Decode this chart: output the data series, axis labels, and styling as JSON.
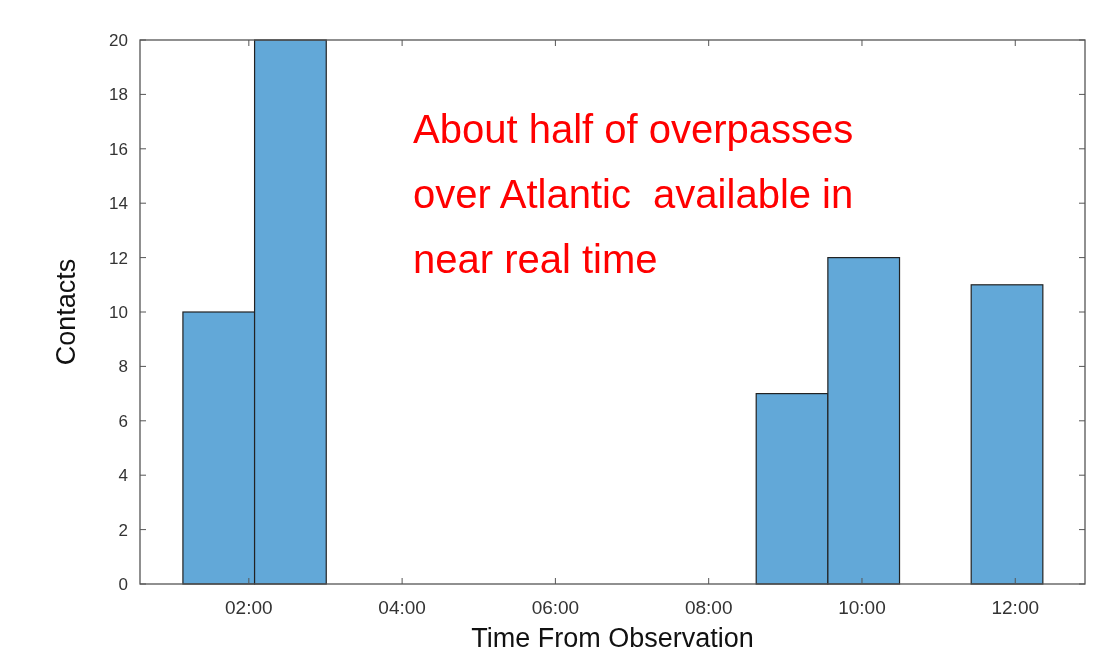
{
  "chart_data": {
    "type": "histogram",
    "xlabel": "Time From Observation",
    "ylabel": "Contacts",
    "bins": [
      1.14,
      2.075,
      3.01,
      3.945,
      4.88,
      5.815,
      6.75,
      7.685,
      8.62,
      9.555,
      10.49,
      11.425,
      12.36
    ],
    "values": [
      10,
      20,
      0,
      0,
      0,
      0,
      0,
      0,
      7,
      12,
      0,
      11
    ],
    "color": "#62a8d8",
    "xlim": [
      0.58,
      12.91
    ],
    "xticks": [
      {
        "value": 2,
        "label": "02:00"
      },
      {
        "value": 4,
        "label": "04:00"
      },
      {
        "value": 6,
        "label": "06:00"
      },
      {
        "value": 8,
        "label": "08:00"
      },
      {
        "value": 10,
        "label": "10:00"
      },
      {
        "value": 12,
        "label": "12:00"
      }
    ],
    "ylim": [
      0,
      20
    ],
    "yticks": [
      0,
      2,
      4,
      6,
      8,
      10,
      12,
      14,
      16,
      18,
      20
    ],
    "grid": false,
    "annotations": [
      "About half of overpasses over Atlantic  available in near real time"
    ]
  }
}
